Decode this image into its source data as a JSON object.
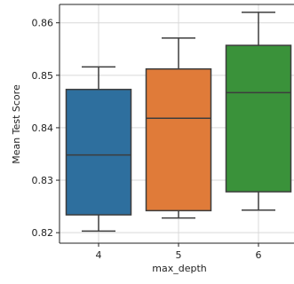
{
  "chart_data": {
    "type": "box",
    "title": "",
    "xlabel": "max_depth",
    "ylabel": "Mean Test Score",
    "categories": [
      "4",
      "5",
      "6"
    ],
    "ylim": [
      0.818,
      0.8635
    ],
    "yticks": [
      "0.82",
      "0.83",
      "0.84",
      "0.85",
      "0.86"
    ],
    "grid": true,
    "colors": [
      "#2e6f9e",
      "#e07b39",
      "#3a923a"
    ],
    "boxes": [
      {
        "category": "4",
        "whisker_low": 0.8203,
        "q1": 0.8234,
        "median": 0.8348,
        "q3": 0.8473,
        "whisker_high": 0.8516
      },
      {
        "category": "5",
        "whisker_low": 0.8228,
        "q1": 0.8242,
        "median": 0.8418,
        "q3": 0.8512,
        "whisker_high": 0.8571
      },
      {
        "category": "6",
        "whisker_low": 0.8243,
        "q1": 0.8278,
        "median": 0.8467,
        "q3": 0.8557,
        "whisker_high": 0.862
      }
    ]
  }
}
